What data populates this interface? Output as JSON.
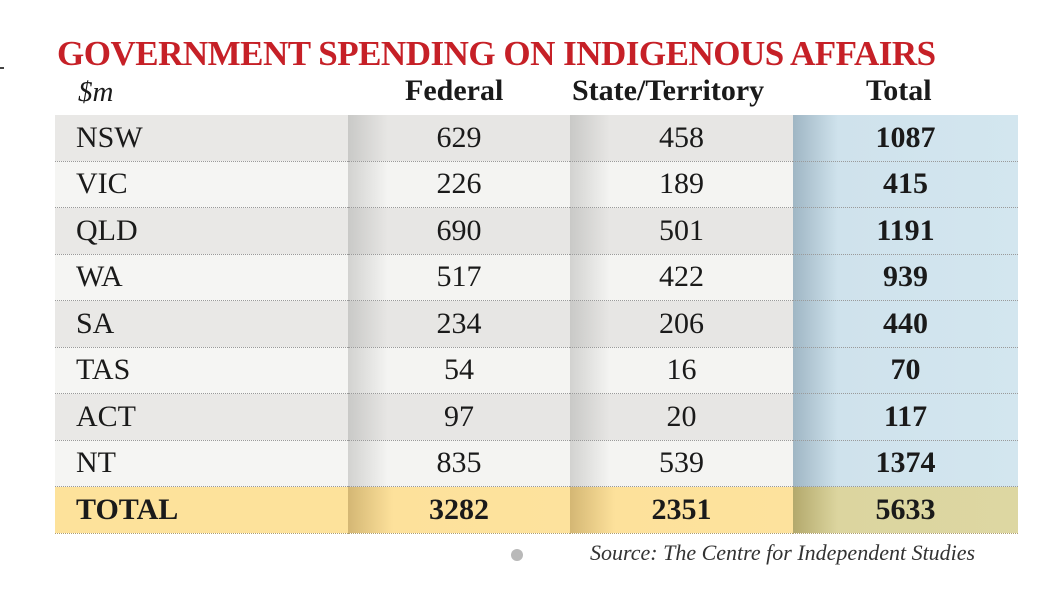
{
  "chart_data": {
    "type": "table",
    "title": "GOVERNMENT SPENDING ON INDIGENOUS AFFAIRS",
    "unit": "$m",
    "columns": [
      "Federal",
      "State/Territory",
      "Total"
    ],
    "rows": [
      {
        "label": "NSW",
        "values": [
          "629",
          "458",
          "1087"
        ]
      },
      {
        "label": "VIC",
        "values": [
          "226",
          "189",
          "415"
        ]
      },
      {
        "label": "QLD",
        "values": [
          "690",
          "501",
          "1191"
        ]
      },
      {
        "label": "WA",
        "values": [
          "517",
          "422",
          "939"
        ]
      },
      {
        "label": "SA",
        "values": [
          "234",
          "206",
          "440"
        ]
      },
      {
        "label": "TAS",
        "values": [
          "54",
          "16",
          "70"
        ]
      },
      {
        "label": "ACT",
        "values": [
          "97",
          "20",
          "117"
        ]
      },
      {
        "label": "NT",
        "values": [
          "835",
          "539",
          "1374"
        ]
      }
    ],
    "total_row": {
      "label": "TOTAL",
      "values": [
        "3282",
        "2351",
        "5633"
      ]
    },
    "source": "Source: The Centre for Independent Studies",
    "colors": {
      "title": "#c62027",
      "total_column": "#cfe2ec",
      "total_row": "#fde29b"
    }
  }
}
